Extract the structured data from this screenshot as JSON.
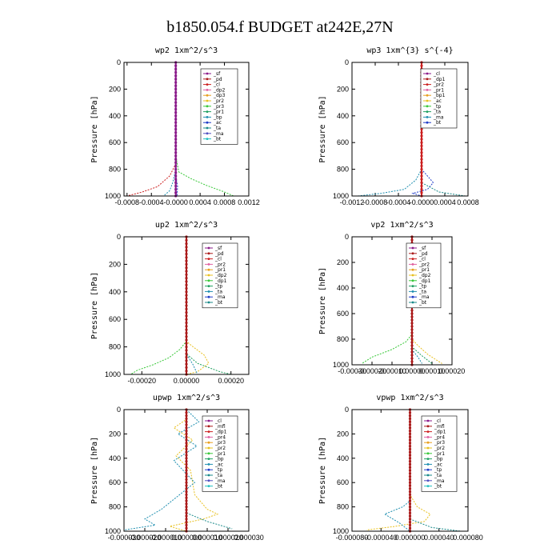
{
  "title": "b1850.054.f  BUDGET at242E,27N",
  "chart_data": [
    {
      "type": "line",
      "title": "wp2   1xm^2/s^3",
      "ylabel": "Pressure [hPa]",
      "xticks": [
        "-0.0008",
        "-0.0004",
        "-0.0000",
        "0.0004",
        "0.0008",
        "0.0012"
      ],
      "xtick_values": [
        -0.0008,
        -0.0004,
        0.0,
        0.0004,
        0.0008,
        0.0012
      ],
      "xlim": [
        -0.00085,
        0.0012
      ],
      "yticks": [
        "0",
        "200",
        "400",
        "600",
        "800",
        "1000"
      ],
      "ylim": [
        1000,
        0
      ],
      "legend": [
        "_sf",
        "_pd",
        "_cl",
        "_dp2",
        "_dp3",
        "_pr2",
        "_pr3",
        "_pr1",
        "_bp",
        "_ac",
        "_ta",
        "_ma",
        "_bt"
      ],
      "series": [
        {
          "name": "_pr1",
          "color": "#39c839",
          "points": [
            [
              0,
              0
            ],
            [
              0,
              700
            ],
            [
              5e-05,
              820
            ],
            [
              0.00025,
              870
            ],
            [
              0.0005,
              920
            ],
            [
              0.0008,
              970
            ],
            [
              0.00095,
              1000
            ]
          ]
        },
        {
          "name": "_dp2",
          "color": "#cc2020",
          "points": [
            [
              0,
              0
            ],
            [
              0,
              760
            ],
            [
              -0.0001,
              850
            ],
            [
              -0.0003,
              930
            ],
            [
              -0.00055,
              970
            ],
            [
              -0.0008,
              1000
            ]
          ]
        },
        {
          "name": "_bp",
          "color": "#1f8fb0",
          "points": [
            [
              0,
              0
            ],
            [
              0,
              800
            ],
            [
              -5e-05,
              900
            ],
            [
              -0.0001,
              960
            ],
            [
              -0.0002,
              1000
            ]
          ]
        },
        {
          "name": "_ta",
          "color": "#1f3cc8",
          "points": [
            [
              0,
              0
            ],
            [
              0,
              850
            ],
            [
              3e-05,
              930
            ],
            [
              2e-05,
              1000
            ]
          ]
        },
        {
          "name": "_cl",
          "color": "#8a1a8a",
          "points": [
            [
              0,
              0
            ],
            [
              0,
              1000
            ]
          ]
        }
      ]
    },
    {
      "type": "line",
      "title": "wp3   1xm^{3} s^{-4}",
      "ylabel": "Pressure [hPa]",
      "xticks": [
        "-0.0012",
        "-0.0008",
        "-0.0004",
        "-0.0000",
        "0.0004",
        "0.0008"
      ],
      "xtick_values": [
        -0.0012,
        -0.0008,
        -0.0004,
        0.0,
        0.0004,
        0.0008
      ],
      "xlim": [
        -0.0012,
        0.0008
      ],
      "yticks": [
        "0",
        "200",
        "400",
        "600",
        "800",
        "1000"
      ],
      "ylim": [
        1000,
        0
      ],
      "legend": [
        "_cl",
        "_dp1",
        "_pr2",
        "_pr1",
        "_bp1",
        "_ac",
        "_tp",
        "_ta",
        "_ma",
        "_bt"
      ],
      "series": [
        {
          "name": "_tp",
          "color": "#1f8fb0",
          "points": [
            [
              0,
              0
            ],
            [
              0,
              800
            ],
            [
              -0.0001,
              880
            ],
            [
              -0.0003,
              950
            ],
            [
              -0.0007,
              980
            ],
            [
              -0.0011,
              1000
            ]
          ]
        },
        {
          "name": "_ta",
          "color": "#1f3cc8",
          "points": [
            [
              0,
              0
            ],
            [
              0,
              800
            ],
            [
              0.0001,
              850
            ],
            [
              0.0002,
              900
            ],
            [
              0.0001,
              950
            ],
            [
              -0.00015,
              980
            ],
            [
              0,
              1000
            ]
          ]
        },
        {
          "name": "_ma",
          "color": "#1a8a8a",
          "points": [
            [
              0,
              0
            ],
            [
              0,
              900
            ],
            [
              0.0003,
              970
            ],
            [
              0.00075,
              1000
            ]
          ]
        },
        {
          "name": "_cl",
          "color": "#cc2020",
          "points": [
            [
              0,
              0
            ],
            [
              0,
              1000
            ]
          ]
        }
      ]
    },
    {
      "type": "line",
      "title": "up2   1xm^2/s^3",
      "ylabel": "Pressure [hPa]",
      "xticks": [
        "-0.00020",
        "0.00000",
        "0.00020"
      ],
      "xtick_values": [
        -0.0002,
        0.0,
        0.0002
      ],
      "xlim": [
        -0.00028,
        0.00028
      ],
      "yticks": [
        "0",
        "200",
        "400",
        "600",
        "800",
        "1000"
      ],
      "ylim": [
        1000,
        0
      ],
      "legend": [
        "_sf",
        "_pd",
        "_cl",
        "_pr2",
        "_pr1",
        "_dp2",
        "_dp1",
        "_tp",
        "_ta",
        "_ma",
        "_bt"
      ],
      "series": [
        {
          "name": "_pr1",
          "color": "#39c839",
          "points": [
            [
              0,
              0
            ],
            [
              0,
              760
            ],
            [
              -3e-05,
              820
            ],
            [
              -8e-05,
              880
            ],
            [
              -0.00015,
              930
            ],
            [
              -0.00022,
              970
            ],
            [
              -0.00025,
              1000
            ]
          ]
        },
        {
          "name": "_pr2",
          "color": "#e8c020",
          "points": [
            [
              0,
              0
            ],
            [
              0,
              760
            ],
            [
              3e-05,
              800
            ],
            [
              8e-05,
              860
            ],
            [
              0.0001,
              920
            ],
            [
              5e-05,
              980
            ],
            [
              0,
              1000
            ]
          ]
        },
        {
          "name": "_dp2",
          "color": "#20a060",
          "points": [
            [
              0,
              0
            ],
            [
              0,
              850
            ],
            [
              5e-05,
              920
            ],
            [
              0.00015,
              980
            ],
            [
              0.0002,
              1000
            ]
          ]
        },
        {
          "name": "_tp",
          "color": "#1f8fb0",
          "points": [
            [
              0,
              0
            ],
            [
              0,
              850
            ],
            [
              3e-05,
              930
            ],
            [
              5e-05,
              1000
            ]
          ]
        },
        {
          "name": "_cl",
          "color": "#aa1a1a",
          "points": [
            [
              0,
              0
            ],
            [
              0,
              1000
            ]
          ]
        }
      ]
    },
    {
      "type": "line",
      "title": "vp2   1xm^2/s^3",
      "ylabel": "Pressure [hPa]",
      "xticks": [
        "-0.00030",
        "-0.00020",
        "-0.00010",
        "0.00000",
        "0.00010",
        "0.00020"
      ],
      "xtick_values": [
        -0.0003,
        -0.0002,
        -0.0001,
        0.0,
        0.0001,
        0.0002
      ],
      "xlim": [
        -0.0003,
        0.0002
      ],
      "yticks": [
        "0",
        "200",
        "400",
        "600",
        "800",
        "1000"
      ],
      "ylim": [
        1000,
        0
      ],
      "legend": [
        "_sf",
        "_pd",
        "_cl",
        "_pr2",
        "_pr1",
        "_dp2",
        "_dp1",
        "_tp",
        "_ta",
        "_ma",
        "_bt"
      ],
      "series": [
        {
          "name": "_pr1",
          "color": "#39c839",
          "points": [
            [
              0,
              0
            ],
            [
              0,
              760
            ],
            [
              -3e-05,
              820
            ],
            [
              -0.0001,
              880
            ],
            [
              -0.0002,
              940
            ],
            [
              -0.00025,
              990
            ]
          ]
        },
        {
          "name": "_pr2",
          "color": "#e8c020",
          "points": [
            [
              0,
              0
            ],
            [
              0,
              800
            ],
            [
              3e-05,
              850
            ],
            [
              8e-05,
              920
            ],
            [
              0.00015,
              990
            ]
          ]
        },
        {
          "name": "_dp2",
          "color": "#20a060",
          "points": [
            [
              0,
              0
            ],
            [
              0,
              860
            ],
            [
              5e-05,
              930
            ],
            [
              0.0001,
              990
            ]
          ]
        },
        {
          "name": "_tp",
          "color": "#1f8fb0",
          "points": [
            [
              0,
              0
            ],
            [
              0,
              880
            ],
            [
              3e-05,
              940
            ],
            [
              5e-05,
              990
            ]
          ]
        },
        {
          "name": "_cl",
          "color": "#aa1a1a",
          "points": [
            [
              0,
              0
            ],
            [
              0,
              1000
            ]
          ]
        }
      ]
    },
    {
      "type": "line",
      "title": "upwp   1xm^2/s^3",
      "ylabel": "Pressure [hPa]",
      "xticks": [
        "-0.000030",
        "-0.000020",
        "-0.000010",
        "0.000000",
        "0.000010",
        "0.000020",
        "0.000030"
      ],
      "xtick_values": [
        -3e-05,
        -2e-05,
        -1e-05,
        0.0,
        1e-05,
        2e-05,
        3e-05
      ],
      "xlim": [
        -3e-05,
        3e-05
      ],
      "yticks": [
        "0",
        "200",
        "400",
        "600",
        "800",
        "1000"
      ],
      "ylim": [
        1000,
        0
      ],
      "legend": [
        "_cl",
        "_mfl",
        "_dp1",
        "_pr4",
        "_pr3",
        "_pr2",
        "_pr1",
        "_bp",
        "_ac",
        "_tp",
        "_ta",
        "_ma",
        "_bt"
      ],
      "series": [
        {
          "name": "_pr1",
          "color": "#e8c020",
          "points": [
            [
              0,
              0
            ],
            [
              0,
              80
            ],
            [
              -6e-06,
              150
            ],
            [
              3e-06,
              250
            ],
            [
              -5e-06,
              380
            ],
            [
              2e-06,
              500
            ],
            [
              4e-06,
              700
            ],
            [
              1e-05,
              820
            ],
            [
              1.5e-05,
              860
            ],
            [
              8e-06,
              900
            ],
            [
              -8e-06,
              960
            ],
            [
              0,
              1000
            ]
          ]
        },
        {
          "name": "_tp",
          "color": "#1f8fb0",
          "points": [
            [
              0,
              0
            ],
            [
              6e-06,
              100
            ],
            [
              -4e-06,
              200
            ],
            [
              5e-06,
              300
            ],
            [
              -6e-06,
              420
            ],
            [
              4e-06,
              600
            ],
            [
              -1.2e-05,
              820
            ],
            [
              -2e-05,
              900
            ],
            [
              -1.5e-05,
              950
            ],
            [
              -3e-05,
              990
            ]
          ]
        },
        {
          "name": "_ta",
          "color": "#1a8a8a",
          "points": [
            [
              0,
              0
            ],
            [
              0,
              850
            ],
            [
              1e-05,
              920
            ],
            [
              2.2e-05,
              980
            ]
          ]
        },
        {
          "name": "_cl",
          "color": "#aa1a1a",
          "points": [
            [
              0,
              0
            ],
            [
              0,
              1000
            ]
          ]
        }
      ]
    },
    {
      "type": "line",
      "title": "vpwp   1xm^2/s^3",
      "ylabel": "Pressure [hPa]",
      "xticks": [
        "-0.000080",
        "-0.000040",
        "0.000000",
        "0.000040",
        "0.000080"
      ],
      "xtick_values": [
        -8e-05,
        -4e-05,
        0.0,
        4e-05,
        8e-05
      ],
      "xlim": [
        -8e-05,
        8e-05
      ],
      "yticks": [
        "0",
        "200",
        "400",
        "600",
        "800",
        "1000"
      ],
      "ylim": [
        1000,
        0
      ],
      "legend": [
        "_cl",
        "_mfl",
        "_dp1",
        "_pr4",
        "_pr3",
        "_pr2",
        "_pr1",
        "_bp",
        "_ac",
        "_tp",
        "_ta",
        "_ma",
        "_bt"
      ],
      "series": [
        {
          "name": "_pr1",
          "color": "#e8c020",
          "points": [
            [
              0,
              0
            ],
            [
              0,
              700
            ],
            [
              1e-05,
              800
            ],
            [
              2.8e-05,
              860
            ],
            [
              2e-05,
              920
            ],
            [
              -2e-05,
              960
            ],
            [
              -6e-05,
              990
            ]
          ]
        },
        {
          "name": "_tp",
          "color": "#1f8fb0",
          "points": [
            [
              0,
              0
            ],
            [
              0,
              750
            ],
            [
              -1e-05,
              800
            ],
            [
              -3.5e-05,
              860
            ],
            [
              -1.5e-05,
              930
            ],
            [
              0,
              1000
            ]
          ]
        },
        {
          "name": "_ta",
          "color": "#1a8a8a",
          "points": [
            [
              0,
              0
            ],
            [
              0,
              900
            ],
            [
              3e-05,
              970
            ],
            [
              7e-05,
              1000
            ]
          ]
        },
        {
          "name": "_cl",
          "color": "#aa1a1a",
          "points": [
            [
              0,
              0
            ],
            [
              0,
              1000
            ]
          ]
        }
      ]
    }
  ]
}
